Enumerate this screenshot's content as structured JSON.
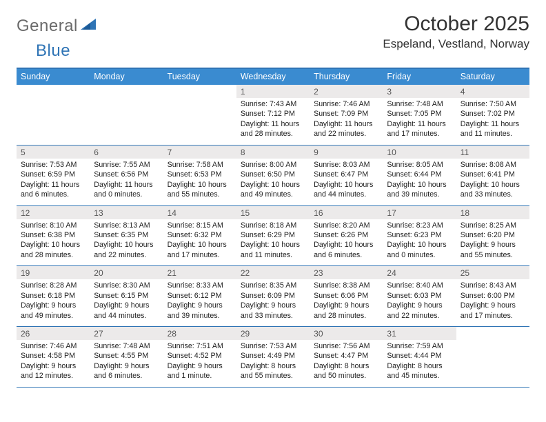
{
  "logo": {
    "word1": "General",
    "word2": "Blue"
  },
  "header": {
    "month_title": "October 2025",
    "location": "Espeland, Vestland, Norway"
  },
  "colors": {
    "header_bar": "#3a8bd0",
    "rule": "#2f74b5",
    "daynum_bg": "#eceaea",
    "logo_gray": "#6a6a6a",
    "logo_blue": "#2f74b5"
  },
  "days_of_week": [
    "Sunday",
    "Monday",
    "Tuesday",
    "Wednesday",
    "Thursday",
    "Friday",
    "Saturday"
  ],
  "weeks": [
    {
      "nums": [
        "",
        "",
        "",
        "1",
        "2",
        "3",
        "4"
      ],
      "details": [
        null,
        null,
        null,
        {
          "sr": "7:43 AM",
          "ss": "7:12 PM",
          "dl": "11 hours and 28 minutes."
        },
        {
          "sr": "7:46 AM",
          "ss": "7:09 PM",
          "dl": "11 hours and 22 minutes."
        },
        {
          "sr": "7:48 AM",
          "ss": "7:05 PM",
          "dl": "11 hours and 17 minutes."
        },
        {
          "sr": "7:50 AM",
          "ss": "7:02 PM",
          "dl": "11 hours and 11 minutes."
        }
      ]
    },
    {
      "nums": [
        "5",
        "6",
        "7",
        "8",
        "9",
        "10",
        "11"
      ],
      "details": [
        {
          "sr": "7:53 AM",
          "ss": "6:59 PM",
          "dl": "11 hours and 6 minutes."
        },
        {
          "sr": "7:55 AM",
          "ss": "6:56 PM",
          "dl": "11 hours and 0 minutes."
        },
        {
          "sr": "7:58 AM",
          "ss": "6:53 PM",
          "dl": "10 hours and 55 minutes."
        },
        {
          "sr": "8:00 AM",
          "ss": "6:50 PM",
          "dl": "10 hours and 49 minutes."
        },
        {
          "sr": "8:03 AM",
          "ss": "6:47 PM",
          "dl": "10 hours and 44 minutes."
        },
        {
          "sr": "8:05 AM",
          "ss": "6:44 PM",
          "dl": "10 hours and 39 minutes."
        },
        {
          "sr": "8:08 AM",
          "ss": "6:41 PM",
          "dl": "10 hours and 33 minutes."
        }
      ]
    },
    {
      "nums": [
        "12",
        "13",
        "14",
        "15",
        "16",
        "17",
        "18"
      ],
      "details": [
        {
          "sr": "8:10 AM",
          "ss": "6:38 PM",
          "dl": "10 hours and 28 minutes."
        },
        {
          "sr": "8:13 AM",
          "ss": "6:35 PM",
          "dl": "10 hours and 22 minutes."
        },
        {
          "sr": "8:15 AM",
          "ss": "6:32 PM",
          "dl": "10 hours and 17 minutes."
        },
        {
          "sr": "8:18 AM",
          "ss": "6:29 PM",
          "dl": "10 hours and 11 minutes."
        },
        {
          "sr": "8:20 AM",
          "ss": "6:26 PM",
          "dl": "10 hours and 6 minutes."
        },
        {
          "sr": "8:23 AM",
          "ss": "6:23 PM",
          "dl": "10 hours and 0 minutes."
        },
        {
          "sr": "8:25 AM",
          "ss": "6:20 PM",
          "dl": "9 hours and 55 minutes."
        }
      ]
    },
    {
      "nums": [
        "19",
        "20",
        "21",
        "22",
        "23",
        "24",
        "25"
      ],
      "details": [
        {
          "sr": "8:28 AM",
          "ss": "6:18 PM",
          "dl": "9 hours and 49 minutes."
        },
        {
          "sr": "8:30 AM",
          "ss": "6:15 PM",
          "dl": "9 hours and 44 minutes."
        },
        {
          "sr": "8:33 AM",
          "ss": "6:12 PM",
          "dl": "9 hours and 39 minutes."
        },
        {
          "sr": "8:35 AM",
          "ss": "6:09 PM",
          "dl": "9 hours and 33 minutes."
        },
        {
          "sr": "8:38 AM",
          "ss": "6:06 PM",
          "dl": "9 hours and 28 minutes."
        },
        {
          "sr": "8:40 AM",
          "ss": "6:03 PM",
          "dl": "9 hours and 22 minutes."
        },
        {
          "sr": "8:43 AM",
          "ss": "6:00 PM",
          "dl": "9 hours and 17 minutes."
        }
      ]
    },
    {
      "nums": [
        "26",
        "27",
        "28",
        "29",
        "30",
        "31",
        ""
      ],
      "details": [
        {
          "sr": "7:46 AM",
          "ss": "4:58 PM",
          "dl": "9 hours and 12 minutes."
        },
        {
          "sr": "7:48 AM",
          "ss": "4:55 PM",
          "dl": "9 hours and 6 minutes."
        },
        {
          "sr": "7:51 AM",
          "ss": "4:52 PM",
          "dl": "9 hours and 1 minute."
        },
        {
          "sr": "7:53 AM",
          "ss": "4:49 PM",
          "dl": "8 hours and 55 minutes."
        },
        {
          "sr": "7:56 AM",
          "ss": "4:47 PM",
          "dl": "8 hours and 50 minutes."
        },
        {
          "sr": "7:59 AM",
          "ss": "4:44 PM",
          "dl": "8 hours and 45 minutes."
        },
        null
      ]
    }
  ],
  "labels": {
    "sunrise": "Sunrise: ",
    "sunset": "Sunset: ",
    "daylight": "Daylight: "
  }
}
